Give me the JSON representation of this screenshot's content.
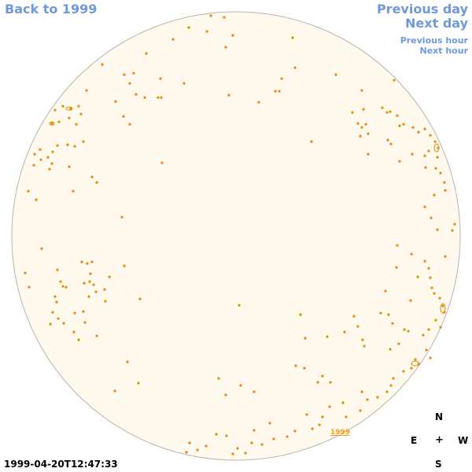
{
  "nav": {
    "back": "Back to 1999",
    "previous_day": "Previous day",
    "next_day": "Next day",
    "previous_hour": "Previous hour",
    "next_hour": "Next hour"
  },
  "compass": {
    "n": "N",
    "e": "E",
    "center": "+",
    "w": "W",
    "s": "S"
  },
  "timestamp": "1999-04-20T12:47:33",
  "region_label": "1999",
  "colors": {
    "nav": "#6f99dc",
    "disk_fill": "#fff9ee",
    "disk_stroke": "#b8b4ae",
    "feature": "#e48c00"
  }
}
